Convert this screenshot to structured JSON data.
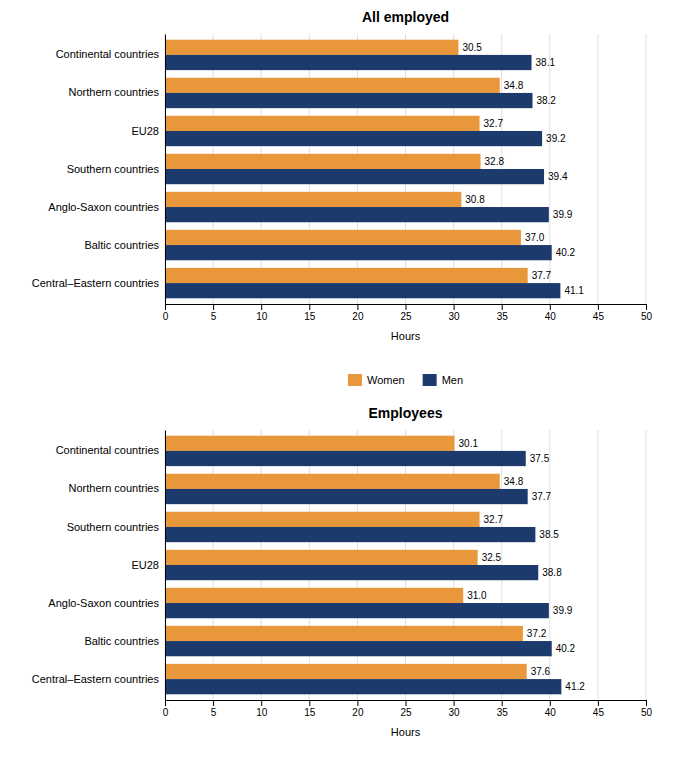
{
  "chart_data": [
    {
      "type": "bar",
      "orientation": "horizontal",
      "title": "All employed",
      "categories": [
        "Continental countries",
        "Northern countries",
        "EU28",
        "Southern countries",
        "Anglo-Saxon countries",
        "Baltic countries",
        "Central–Eastern countries"
      ],
      "series": [
        {
          "name": "Women",
          "color": "#E8973A",
          "values": [
            30.5,
            34.8,
            32.7,
            32.8,
            30.8,
            37.0,
            37.7
          ],
          "value_labels": [
            "30.5",
            "34.8",
            "32.7",
            "32.8",
            "30.8",
            "37.0",
            "37.7"
          ]
        },
        {
          "name": "Men",
          "color": "#1C3A6B",
          "values": [
            38.1,
            38.2,
            39.2,
            39.4,
            39.9,
            40.2,
            41.1
          ]
        }
      ],
      "xlabel": "Hours",
      "xlim": [
        0,
        50
      ],
      "xticks": [
        0,
        5,
        10,
        15,
        20,
        25,
        30,
        35,
        40,
        45,
        50
      ],
      "grid": true,
      "data_labels": true,
      "legend": "bottom"
    },
    {
      "type": "bar",
      "orientation": "horizontal",
      "title": "Employees",
      "categories": [
        "Continental countries",
        "Northern countries",
        "Southern countries",
        "EU28",
        "Anglo-Saxon countries",
        "Baltic countries",
        "Central–Eastern countries"
      ],
      "series": [
        {
          "name": "Women",
          "color": "#E8973A",
          "values": [
            30.1,
            34.8,
            32.7,
            32.5,
            31.0,
            37.2,
            37.6
          ],
          "value_labels": [
            "30.1",
            "34.8",
            "32.7",
            "32.5",
            "31.0",
            "37.2",
            "37.6"
          ]
        },
        {
          "name": "Men",
          "color": "#1C3A6B",
          "values": [
            37.5,
            37.7,
            38.5,
            38.8,
            39.9,
            40.2,
            41.2
          ]
        }
      ],
      "xlabel": "Hours",
      "xlim": [
        0,
        50
      ],
      "xticks": [
        0,
        5,
        10,
        15,
        20,
        25,
        30,
        35,
        40,
        45,
        50
      ],
      "grid": true,
      "data_labels": true
    }
  ]
}
